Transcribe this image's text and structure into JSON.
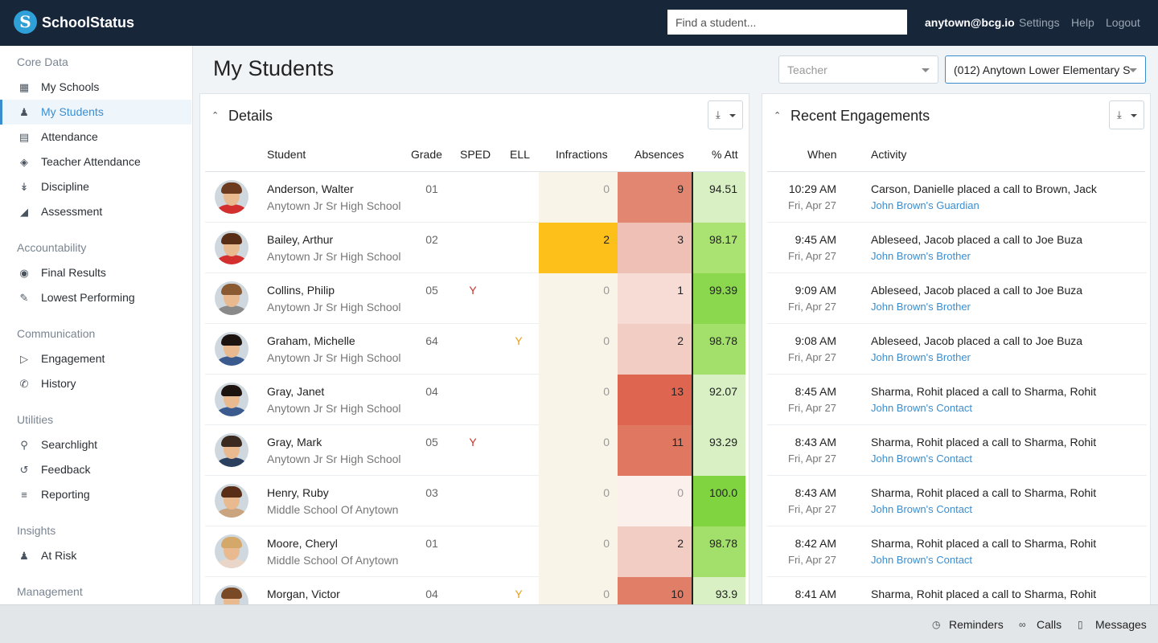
{
  "app": {
    "brand": "SchoolStatus",
    "search_placeholder": "Find a student...",
    "user": "anytown@bcg.io",
    "links": [
      "Settings",
      "Help",
      "Logout"
    ]
  },
  "sidebar": {
    "sections": [
      {
        "title": "Core Data",
        "items": [
          {
            "label": "My Schools",
            "icon": "school-icon"
          },
          {
            "label": "My Students",
            "icon": "students-icon",
            "active": true
          },
          {
            "label": "Attendance",
            "icon": "calendar-icon"
          },
          {
            "label": "Teacher Attendance",
            "icon": "ticket-icon"
          },
          {
            "label": "Discipline",
            "icon": "thermometer-icon"
          },
          {
            "label": "Assessment",
            "icon": "area-chart-icon"
          }
        ]
      },
      {
        "title": "Accountability",
        "items": [
          {
            "label": "Final Results",
            "icon": "eye-icon"
          },
          {
            "label": "Lowest Performing",
            "icon": "pencil-icon"
          }
        ]
      },
      {
        "title": "Communication",
        "items": [
          {
            "label": "Engagement",
            "icon": "megaphone-icon"
          },
          {
            "label": "History",
            "icon": "phone-icon"
          }
        ]
      },
      {
        "title": "Utilities",
        "items": [
          {
            "label": "Searchlight",
            "icon": "flashlight-icon"
          },
          {
            "label": "Feedback",
            "icon": "retweet-icon"
          },
          {
            "label": "Reporting",
            "icon": "list-icon"
          }
        ]
      },
      {
        "title": "Insights",
        "items": [
          {
            "label": "At Risk",
            "icon": "person-at-risk-icon"
          }
        ]
      },
      {
        "title": "Management",
        "items": []
      }
    ]
  },
  "page": {
    "title": "My Students",
    "teacher_select": "Teacher",
    "school_select": "(012) Anytown Lower Elementary S"
  },
  "details": {
    "title": "Details",
    "columns": [
      "Student",
      "Grade",
      "SPED",
      "ELL",
      "Infractions",
      "Absences",
      "% Att"
    ],
    "colors": {
      "infractions_base": "#f9f4e8",
      "infractions_hot": "#fdc01b",
      "att_high": "#86d84b",
      "att_mid": "#abe373",
      "att_low": "#d8f0c4"
    },
    "rows": [
      {
        "name": "Anderson, Walter",
        "school": "Anytown Jr Sr High School",
        "grade": "01",
        "sped": "",
        "ell": "",
        "infractions": "0",
        "absences": "9",
        "att": "94.51",
        "abs_color": "#e28672",
        "att_color": "#d8f0c4",
        "avatar": {
          "hair": "#6b3a1f",
          "shirt": "#d32f2f"
        }
      },
      {
        "name": "Bailey, Arthur",
        "school": "Anytown Jr Sr High School",
        "grade": "02",
        "sped": "",
        "ell": "",
        "infractions": "2",
        "absences": "3",
        "att": "98.17",
        "abs_color": "#eec0b6",
        "att_color": "#abe373",
        "avatar": {
          "hair": "#5a2e16",
          "shirt": "#d32f2f"
        }
      },
      {
        "name": "Collins, Philip",
        "school": "Anytown Jr Sr High School",
        "grade": "05",
        "sped": "Y",
        "ell": "",
        "infractions": "0",
        "absences": "1",
        "att": "99.39",
        "abs_color": "#f7dcd6",
        "att_color": "#8bd84f",
        "avatar": {
          "hair": "#8a5a32",
          "shirt": "#8a8a8a"
        }
      },
      {
        "name": "Graham, Michelle",
        "school": "Anytown Jr Sr High School",
        "grade": "64",
        "sped": "",
        "ell": "Y",
        "infractions": "0",
        "absences": "2",
        "att": "98.78",
        "abs_color": "#f2cdc4",
        "att_color": "#a3e06b",
        "avatar": {
          "hair": "#1d1410",
          "shirt": "#3b5b8f"
        }
      },
      {
        "name": "Gray, Janet",
        "school": "Anytown Jr Sr High School",
        "grade": "04",
        "sped": "",
        "ell": "",
        "infractions": "0",
        "absences": "13",
        "att": "92.07",
        "abs_color": "#de6550",
        "att_color": "#d8f0c4",
        "avatar": {
          "hair": "#1d1410",
          "shirt": "#3b5b8f"
        }
      },
      {
        "name": "Gray, Mark",
        "school": "Anytown Jr Sr High School",
        "grade": "05",
        "sped": "Y",
        "ell": "",
        "infractions": "0",
        "absences": "11",
        "att": "93.29",
        "abs_color": "#e07761",
        "att_color": "#d8f0c4",
        "avatar": {
          "hair": "#3a2a20",
          "shirt": "#2b3f5e"
        }
      },
      {
        "name": "Henry, Ruby",
        "school": "Middle School Of Anytown",
        "grade": "03",
        "sped": "",
        "ell": "",
        "infractions": "0",
        "absences": "0",
        "att": "100.0",
        "abs_color": "#fcf0ed",
        "att_color": "#7fd440",
        "avatar": {
          "hair": "#5a2e16",
          "shirt": "#c9a47f"
        }
      },
      {
        "name": "Moore, Cheryl",
        "school": "Middle School Of Anytown",
        "grade": "01",
        "sped": "",
        "ell": "",
        "infractions": "0",
        "absences": "2",
        "att": "98.78",
        "abs_color": "#f2cdc4",
        "att_color": "#a3e06b",
        "avatar": {
          "hair": "#d4a868",
          "shirt": "#e9d6c8"
        }
      },
      {
        "name": "Morgan, Victor",
        "school": "",
        "grade": "04",
        "sped": "",
        "ell": "Y",
        "infractions": "0",
        "absences": "10",
        "att": "93.9",
        "abs_color": "#e07e68",
        "att_color": "#d8f0c4",
        "avatar": {
          "hair": "#7a4a26",
          "shirt": "#d32f2f"
        }
      }
    ]
  },
  "engagements": {
    "title": "Recent Engagements",
    "columns": [
      "When",
      "Activity"
    ],
    "rows": [
      {
        "time": "10:29 AM",
        "date": "Fri, Apr 27",
        "activity": "Carson, Danielle placed a call to Brown, Jack",
        "link": "John Brown's Guardian"
      },
      {
        "time": "9:45 AM",
        "date": "Fri, Apr 27",
        "activity": "Ableseed, Jacob placed a call to Joe Buza",
        "link": "John Brown's Brother"
      },
      {
        "time": "9:09 AM",
        "date": "Fri, Apr 27",
        "activity": "Ableseed, Jacob placed a call to Joe Buza",
        "link": "John Brown's Brother"
      },
      {
        "time": "9:08 AM",
        "date": "Fri, Apr 27",
        "activity": "Ableseed, Jacob placed a call to Joe Buza",
        "link": "John Brown's Brother"
      },
      {
        "time": "8:45 AM",
        "date": "Fri, Apr 27",
        "activity": "Sharma, Rohit placed a call to Sharma, Rohit",
        "link": "John Brown's Contact"
      },
      {
        "time": "8:43 AM",
        "date": "Fri, Apr 27",
        "activity": "Sharma, Rohit placed a call to Sharma, Rohit",
        "link": "John Brown's Contact"
      },
      {
        "time": "8:43 AM",
        "date": "Fri, Apr 27",
        "activity": "Sharma, Rohit placed a call to Sharma, Rohit",
        "link": "John Brown's Contact"
      },
      {
        "time": "8:42 AM",
        "date": "Fri, Apr 27",
        "activity": "Sharma, Rohit placed a call to Sharma, Rohit",
        "link": "John Brown's Contact"
      },
      {
        "time": "8:41 AM",
        "date": "",
        "activity": "Sharma, Rohit placed a call to Sharma, Rohit",
        "link": ""
      }
    ]
  },
  "bottombar": {
    "items": [
      {
        "label": "Reminders",
        "icon": "clock-icon"
      },
      {
        "label": "Calls",
        "icon": "voicemail-icon"
      },
      {
        "label": "Messages",
        "icon": "chat-icon"
      }
    ]
  }
}
